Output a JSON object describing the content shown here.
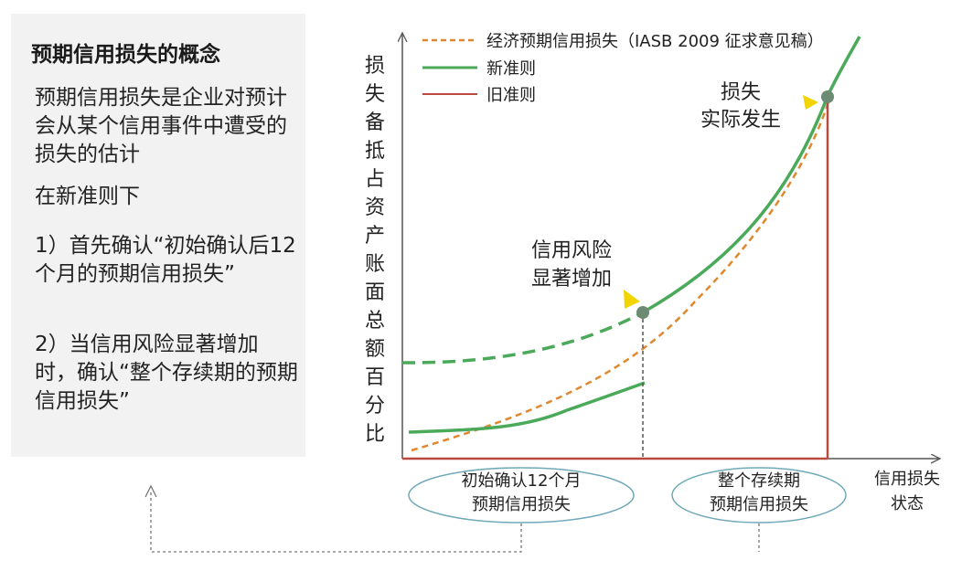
{
  "panel": {
    "title": "预期信用损失的概念",
    "p1": "预期信用损失是企业对预计会从某个信用事件中遭受的损失的估计",
    "p2": "在新准则下",
    "p3": "1）首先确认“初始确认后12个月的预期信用损失”",
    "p4": "2）当信用风险显著增加时，确认“整个存续期的预期信用损失”"
  },
  "legend": {
    "economic": "经济预期信用损失（IASB 2009 征求意见稿）",
    "new_rule": "新准则",
    "old_rule": "旧准则"
  },
  "axis": {
    "y_label_chars": [
      "损",
      "失",
      "备",
      "抵",
      "占",
      "资",
      "产",
      "账",
      "面",
      "总",
      "额",
      "百",
      "分",
      "比"
    ],
    "x_label_line1": "信用损失",
    "x_label_line2": "状态"
  },
  "annotations": {
    "loss_line1": "损失",
    "loss_line2": "实际发生",
    "risk_line1": "信用风险",
    "risk_line2": "显著增加"
  },
  "ellipses": {
    "left_line1": "初始确认12个月",
    "left_line2": "预期信用损失",
    "right_line1": "整个存续期",
    "right_line2": "预期信用损失"
  },
  "colors": {
    "economic": "#e0882f",
    "new_rule": "#4aaa5a",
    "old_rule": "#b84a40",
    "marker": "#6d8a72",
    "arrowhead": "#f2d500",
    "ellipse": "#6fa8b8",
    "panel_bg": "#f2f2f2"
  }
}
